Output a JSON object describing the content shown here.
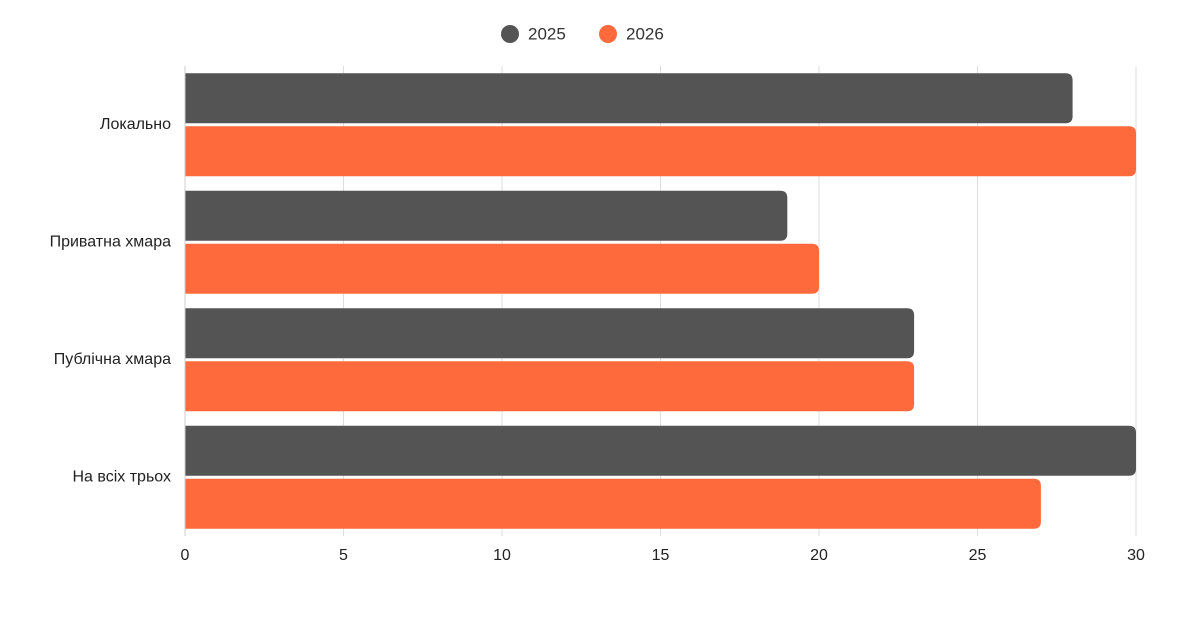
{
  "chart_data": {
    "type": "bar",
    "orientation": "horizontal",
    "categories": [
      "Локально",
      "Приватна хмара",
      "Публічна хмара",
      "На всіх трьох"
    ],
    "series": [
      {
        "name": "2025",
        "color": "#545454",
        "values": [
          28,
          19,
          23,
          30
        ]
      },
      {
        "name": "2026",
        "color": "#ff6a3d",
        "values": [
          30,
          20,
          23,
          27
        ]
      }
    ],
    "xlim": [
      0,
      30
    ],
    "xticks": [
      "0",
      "5",
      "10",
      "15",
      "20",
      "25",
      "30"
    ],
    "xtick_values": [
      0,
      5,
      10,
      15,
      20,
      25,
      30
    ],
    "grid": "vertical",
    "legend": "top-center",
    "title": "",
    "xlabel": "",
    "ylabel": ""
  }
}
